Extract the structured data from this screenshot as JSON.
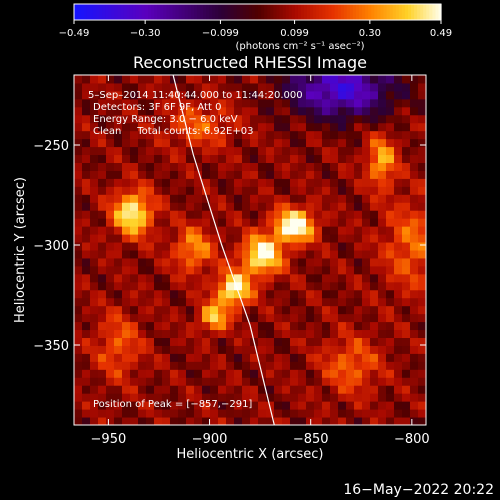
{
  "chart_data": {
    "type": "heatmap",
    "title": "Reconstructed RHESSI Image",
    "xlabel": "Heliocentric X (arcsec)",
    "ylabel": "Heliocentric Y (arcsec)",
    "xlim": [
      -967,
      -793
    ],
    "ylim": [
      -390,
      -215
    ],
    "x_ticks": [
      {
        "value": -950,
        "label": "−950"
      },
      {
        "value": -900,
        "label": "−900"
      },
      {
        "value": -850,
        "label": "−850"
      },
      {
        "value": -800,
        "label": "−800"
      }
    ],
    "y_ticks": [
      {
        "value": -250,
        "label": "−250"
      },
      {
        "value": -300,
        "label": "−300"
      },
      {
        "value": -350,
        "label": "−350"
      }
    ],
    "peak": {
      "x": -857,
      "y": -291
    },
    "colorbar": {
      "min": -0.49,
      "max": 0.49,
      "ticks": [
        {
          "value": -0.49,
          "label": "−0.49"
        },
        {
          "value": -0.3,
          "label": "−0.30"
        },
        {
          "value": -0.099,
          "label": "−0.099"
        },
        {
          "value": 0.099,
          "label": "0.099"
        },
        {
          "value": 0.3,
          "label": "0.30"
        },
        {
          "value": 0.49,
          "label": "0.49"
        }
      ],
      "units_label": "(photons cm⁻² s⁻¹ asec⁻²)"
    },
    "annotations": {
      "time_range": "5–Sep–2014 11:40:44.000 to 11:44:20.000",
      "detectors": "Detectors: 3F 6F 9F, Att 0",
      "energy_range": "Energy Range: 3.0 − 6.0 keV",
      "method_counts": "Clean     Total counts: 6.92E+03",
      "peak_position": "Position of Peak = [−857,−291]"
    },
    "sources": [
      {
        "x": -938,
        "y": -284,
        "amp": 0.42,
        "sx": 7,
        "sy": 8
      },
      {
        "x": -858,
        "y": -290,
        "amp": 0.49,
        "sx": 7,
        "sy": 6
      },
      {
        "x": -874,
        "y": -305,
        "amp": 0.45,
        "sx": 7,
        "sy": 7
      },
      {
        "x": -888,
        "y": -322,
        "amp": 0.45,
        "sx": 6,
        "sy": 6
      },
      {
        "x": -898,
        "y": -336,
        "amp": 0.34,
        "sx": 5,
        "sy": 5
      },
      {
        "x": -908,
        "y": -302,
        "amp": 0.26,
        "sx": 7,
        "sy": 8
      },
      {
        "x": -815,
        "y": -258,
        "amp": 0.3,
        "sx": 5,
        "sy": 9
      },
      {
        "x": -830,
        "y": -360,
        "amp": 0.2,
        "sx": 10,
        "sy": 10
      },
      {
        "x": -800,
        "y": -300,
        "amp": 0.2,
        "sx": 10,
        "sy": 16
      },
      {
        "x": -945,
        "y": -350,
        "amp": 0.18,
        "sx": 8,
        "sy": 12
      },
      {
        "x": -905,
        "y": -240,
        "amp": 0.18,
        "sx": 12,
        "sy": 8
      }
    ],
    "negative_region": {
      "x": -835,
      "y": -222,
      "amp": -0.42,
      "sx": 18,
      "sy": 10
    },
    "limb_curve": [
      {
        "x": -918,
        "y": -215
      },
      {
        "x": -908,
        "y": -255
      },
      {
        "x": -894,
        "y": -300
      },
      {
        "x": -880,
        "y": -340
      },
      {
        "x": -868,
        "y": -390
      }
    ]
  },
  "footer": {
    "date": "16−May−2022 20:22"
  }
}
